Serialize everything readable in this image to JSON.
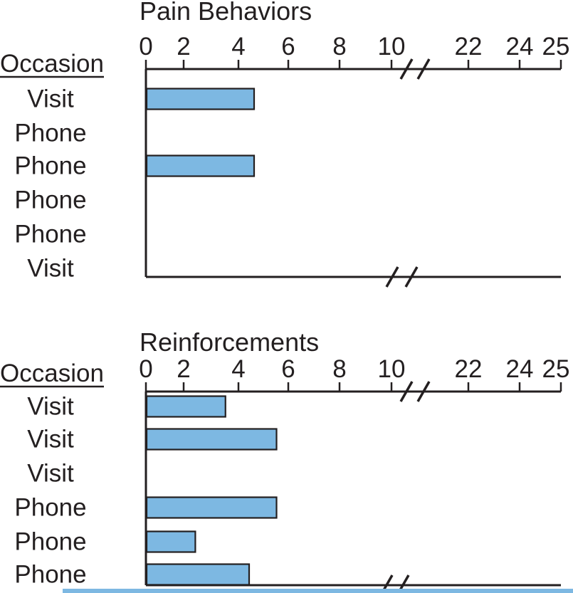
{
  "figure": {
    "occasion_header": "Occasion",
    "colors": {
      "bar_fill": "#7db8e2",
      "bar_border": "#231f20",
      "line": "#231f20",
      "text": "#231f20"
    }
  },
  "chart_data": [
    {
      "type": "bar",
      "orientation": "horizontal",
      "title": "Pain Behaviors",
      "ylabel": "Occasion",
      "categories": [
        "Visit",
        "Phone",
        "Phone",
        "Phone",
        "Phone",
        "Visit"
      ],
      "values": [
        4.6,
        0,
        4.6,
        0,
        0,
        0
      ],
      "axis_ticks": [
        0,
        2,
        4,
        6,
        8,
        10,
        22,
        24,
        25
      ],
      "axis_break_between": [
        10,
        22
      ],
      "xlim": [
        0,
        25
      ],
      "grid": false,
      "legend": false,
      "tick_side": "top"
    },
    {
      "type": "bar",
      "orientation": "horizontal",
      "title": "Reinforcements",
      "ylabel": "Occasion",
      "categories": [
        "Visit",
        "Visit",
        "Visit",
        "Phone",
        "Phone",
        "Phone"
      ],
      "values": [
        3.5,
        5.5,
        0,
        5.5,
        2.4,
        4.4
      ],
      "axis_ticks": [
        0,
        2,
        4,
        6,
        8,
        10,
        22,
        24,
        25
      ],
      "axis_break_between": [
        10,
        22
      ],
      "xlim": [
        0,
        25
      ],
      "grid": false,
      "legend": false,
      "tick_side": "top"
    }
  ]
}
